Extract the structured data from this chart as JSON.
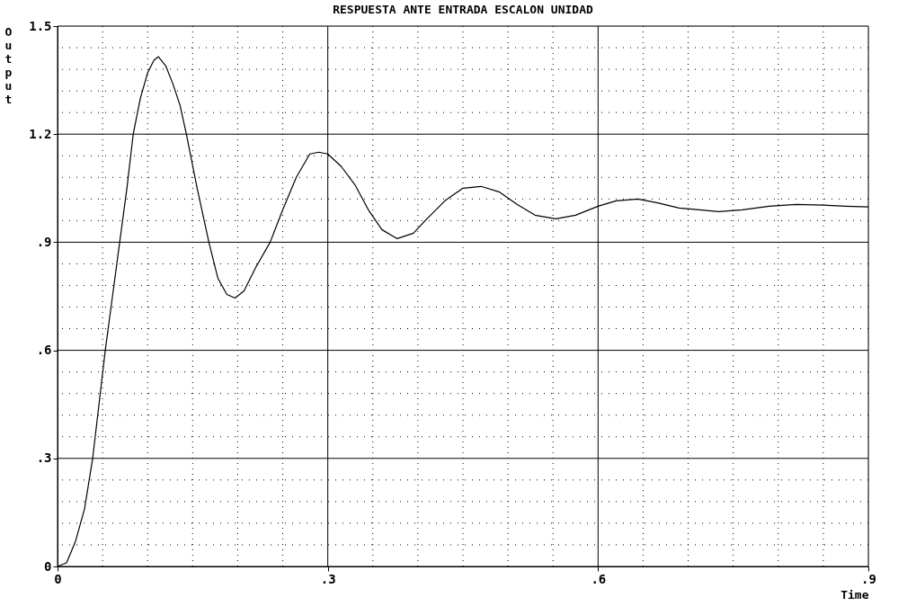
{
  "chart_data": {
    "type": "line",
    "title": "RESPUESTA ANTE ENTRADA ESCALON UNIDAD",
    "xlabel": "Time",
    "ylabel": "Output",
    "x": [
      0,
      0.01,
      0.02,
      0.03,
      0.039,
      0.046,
      0.053,
      0.061,
      0.069,
      0.077,
      0.084,
      0.092,
      0.1,
      0.107,
      0.112,
      0.12,
      0.128,
      0.136,
      0.143,
      0.155,
      0.168,
      0.178,
      0.188,
      0.197,
      0.207,
      0.22,
      0.236,
      0.25,
      0.265,
      0.28,
      0.29,
      0.3,
      0.315,
      0.33,
      0.345,
      0.36,
      0.377,
      0.395,
      0.41,
      0.43,
      0.45,
      0.47,
      0.49,
      0.51,
      0.53,
      0.553,
      0.575,
      0.6,
      0.62,
      0.644,
      0.665,
      0.69,
      0.734,
      0.76,
      0.79,
      0.82,
      0.85,
      0.875,
      0.9
    ],
    "series": [
      {
        "color": "#000000",
        "values": [
          0,
          0.01,
          0.07,
          0.16,
          0.3,
          0.45,
          0.6,
          0.75,
          0.9,
          1.05,
          1.2,
          1.3,
          1.37,
          1.405,
          1.415,
          1.39,
          1.34,
          1.28,
          1.2,
          1.05,
          0.9,
          0.8,
          0.755,
          0.745,
          0.765,
          0.83,
          0.9,
          0.99,
          1.08,
          1.145,
          1.15,
          1.145,
          1.11,
          1.06,
          0.99,
          0.935,
          0.91,
          0.925,
          0.965,
          1.015,
          1.05,
          1.055,
          1.04,
          1.005,
          0.975,
          0.965,
          0.975,
          1.0,
          1.015,
          1.02,
          1.01,
          0.995,
          0.985,
          0.99,
          1.0,
          1.005,
          1.003,
          1.0,
          0.998
        ]
      }
    ],
    "xlim": [
      0,
      0.9
    ],
    "ylim": [
      0,
      1.5
    ],
    "xticks": [
      {
        "value": 0,
        "label": "0"
      },
      {
        "value": 0.3,
        "label": ".3"
      },
      {
        "value": 0.6,
        "label": ".6"
      },
      {
        "value": 0.9,
        "label": ".9"
      }
    ],
    "yticks": [
      {
        "value": 0,
        "label": "0"
      },
      {
        "value": 0.3,
        "label": ".3"
      },
      {
        "value": 0.6,
        "label": ".6"
      },
      {
        "value": 0.9,
        "label": ".9"
      },
      {
        "value": 1.2,
        "label": "1.2"
      },
      {
        "value": 1.5,
        "label": "1.5"
      }
    ],
    "grid": true,
    "line_style": "solid"
  }
}
